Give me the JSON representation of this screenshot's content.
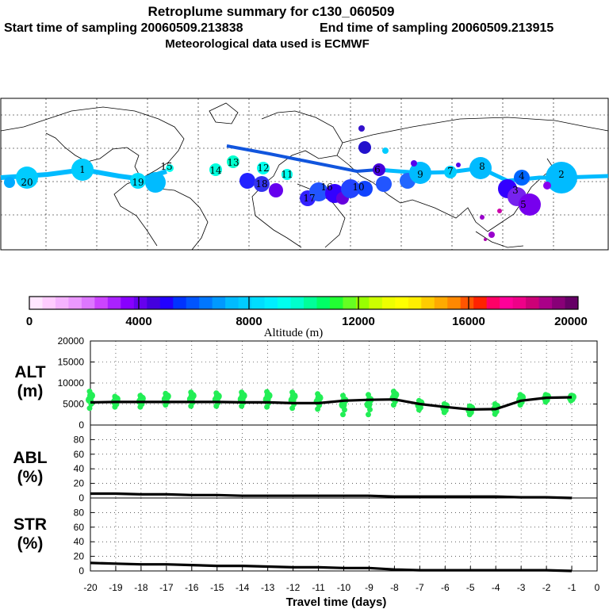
{
  "title": "Retroplume summary for c130_060509",
  "subtitle_start": "Start time of sampling 20060509.213838",
  "subtitle_end": "End time of sampling 20060509.213915",
  "subtitle_met": "Meteorological data used is ECMWF",
  "colorbar": {
    "label": "Altitude (m)",
    "ticks": [
      "0",
      "4000",
      "8000",
      "12000",
      "16000",
      "20000"
    ],
    "colors": [
      "#ffe6ff",
      "#ffccff",
      "#f5b3ff",
      "#eb99ff",
      "#dd77ff",
      "#cc44ff",
      "#aa22ff",
      "#8800ff",
      "#6600ee",
      "#4400dd",
      "#2200ff",
      "#0033ff",
      "#0055ff",
      "#0077ff",
      "#0099ff",
      "#00bbff",
      "#00ccff",
      "#00ddff",
      "#00eeff",
      "#00ffee",
      "#00ffcc",
      "#00ff99",
      "#00ff66",
      "#22ff33",
      "#66ff22",
      "#99ff00",
      "#ccff00",
      "#eeff00",
      "#ffff00",
      "#ffee00",
      "#ffcc00",
      "#ffaa00",
      "#ff8800",
      "#ff5500",
      "#ff2200",
      "#ff0066",
      "#ff0099",
      "#ee0088",
      "#cc0077",
      "#aa0088",
      "#880077",
      "#660066"
    ]
  },
  "map_labels": [
    "20",
    "19",
    "18",
    "17",
    "16",
    "15",
    "14",
    "13",
    "12",
    "11",
    "10",
    "9",
    "8",
    "7",
    "6",
    "5",
    "4",
    "3",
    "2",
    "1"
  ],
  "chart_data": [
    {
      "type": "line",
      "panel": "ALT",
      "ylabel": "ALT (m)",
      "ylabel_top": "ALT",
      "ylabel_bottom": "(m)",
      "x": [
        -20,
        -19,
        -18,
        -17,
        -16,
        -15,
        -14,
        -13,
        -12,
        -11,
        -10,
        -9,
        -8,
        -7,
        -6,
        -5,
        -4,
        -3,
        -2,
        -1
      ],
      "values": [
        5400,
        5500,
        5500,
        5500,
        5500,
        5500,
        5400,
        5400,
        5200,
        5200,
        5800,
        6000,
        6100,
        5000,
        4300,
        3700,
        3800,
        5800,
        6500,
        6600
      ],
      "scatter_ranges": [
        [
          4000,
          8000
        ],
        [
          4300,
          6800
        ],
        [
          4300,
          7000
        ],
        [
          4800,
          7500
        ],
        [
          4500,
          7800
        ],
        [
          4500,
          7600
        ],
        [
          4500,
          7800
        ],
        [
          4300,
          7900
        ],
        [
          4000,
          7800
        ],
        [
          3800,
          7400
        ],
        [
          2500,
          7000
        ],
        [
          2500,
          7200
        ],
        [
          4800,
          8000
        ],
        [
          3600,
          5800
        ],
        [
          3000,
          5000
        ],
        [
          2500,
          4500
        ],
        [
          2600,
          5000
        ],
        [
          4800,
          7200
        ],
        [
          5500,
          7200
        ],
        [
          5800,
          7000
        ]
      ],
      "ylim": [
        0,
        20000
      ],
      "yticks": [
        "0",
        "5000",
        "10000",
        "15000",
        "20000"
      ],
      "xlim": [
        -20,
        0
      ]
    },
    {
      "type": "line",
      "panel": "ABL",
      "ylabel": "ABL (%)",
      "ylabel_top": "ABL",
      "ylabel_bottom": "(%)",
      "x": [
        -20,
        -19,
        -18,
        -17,
        -16,
        -15,
        -14,
        -13,
        -12,
        -11,
        -10,
        -9,
        -8,
        -7,
        -6,
        -5,
        -4,
        -3,
        -2,
        -1
      ],
      "values": [
        6,
        6,
        5,
        5,
        4,
        4,
        3,
        3,
        3,
        3,
        3,
        3,
        2,
        2,
        2,
        2,
        2,
        1,
        1,
        0
      ],
      "ylim": [
        0,
        100
      ],
      "yticks": [
        "0",
        "20",
        "40",
        "60",
        "80"
      ],
      "xlim": [
        -20,
        0
      ]
    },
    {
      "type": "line",
      "panel": "STR",
      "ylabel": "STR (%)",
      "ylabel_top": "STR",
      "ylabel_bottom": "(%)",
      "x": [
        -20,
        -19,
        -18,
        -17,
        -16,
        -15,
        -14,
        -13,
        -12,
        -11,
        -10,
        -9,
        -8,
        -7,
        -6,
        -5,
        -4,
        -3,
        -2,
        -1
      ],
      "values": [
        11,
        10,
        9,
        9,
        8,
        7,
        7,
        6,
        5,
        5,
        4,
        4,
        2,
        1,
        1,
        1,
        1,
        1,
        1,
        0
      ],
      "ylim": [
        0,
        100
      ],
      "yticks": [
        "0",
        "20",
        "40",
        "60",
        "80"
      ],
      "xlim": [
        -20,
        0
      ],
      "xticks": [
        "-20",
        "-19",
        "-18",
        "-17",
        "-16",
        "-15",
        "-14",
        "-13",
        "-12",
        "-11",
        "-10",
        "-9",
        "-8",
        "-7",
        "-6",
        "-5",
        "-4",
        "-3",
        "-2",
        "-1",
        "0"
      ],
      "xlabel": "Travel time (days)"
    }
  ]
}
